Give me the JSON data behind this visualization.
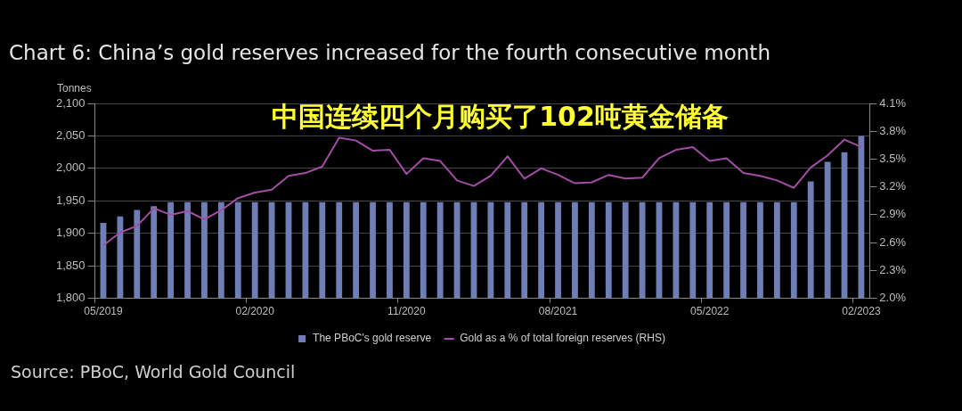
{
  "chart_data": {
    "type": "bar",
    "title": "Chart 6: China’s gold reserves increased for the fourth consecutive month",
    "subtitle": "中国连续四个月购买了102吨黄金储备",
    "ylabel": "Tonnes",
    "categories": [
      "05/2019",
      null,
      null,
      null,
      null,
      null,
      null,
      null,
      null,
      "02/2020",
      null,
      null,
      null,
      null,
      null,
      null,
      null,
      null,
      "11/2020",
      null,
      null,
      null,
      null,
      null,
      null,
      null,
      null,
      "08/2021",
      null,
      null,
      null,
      null,
      null,
      null,
      null,
      null,
      "05/2022",
      null,
      null,
      null,
      null,
      null,
      null,
      null,
      null,
      "02/2023"
    ],
    "series": [
      {
        "name": "The PBoC's gold reserve",
        "color": "#6f7fb5",
        "values": [
          1916,
          1926,
          1936,
          1942,
          1948,
          1948,
          1948,
          1948,
          1948,
          1948,
          1948,
          1948,
          1948,
          1948,
          1948,
          1948,
          1948,
          1948,
          1948,
          1948,
          1948,
          1948,
          1948,
          1948,
          1948,
          1948,
          1948,
          1948,
          1948,
          1948,
          1948,
          1948,
          1948,
          1948,
          1948,
          1948,
          1948,
          1948,
          1948,
          1948,
          1948,
          1948,
          1980,
          2010,
          2025,
          2050
        ]
      },
      {
        "name": "Gold as a % of total foreign reserves (RHS)",
        "type": "line",
        "axis": "y2",
        "color": "#a24ea6",
        "values": [
          2.57,
          2.71,
          2.78,
          2.97,
          2.9,
          2.94,
          2.85,
          2.95,
          3.08,
          3.14,
          3.17,
          3.32,
          3.35,
          3.42,
          3.73,
          3.7,
          3.59,
          3.6,
          3.34,
          3.51,
          3.48,
          3.27,
          3.21,
          3.32,
          3.53,
          3.29,
          3.4,
          3.33,
          3.24,
          3.25,
          3.33,
          3.29,
          3.3,
          3.51,
          3.6,
          3.63,
          3.48,
          3.51,
          3.35,
          3.32,
          3.27,
          3.19,
          3.41,
          3.54,
          3.71,
          3.63
        ]
      }
    ],
    "ylim": [
      1800,
      2100
    ],
    "yticks": [
      {
        "value": 1800,
        "label": "1,800"
      },
      {
        "value": 1850,
        "label": "1,850"
      },
      {
        "value": 1900,
        "label": "1,900"
      },
      {
        "value": 1950,
        "label": "1,950"
      },
      {
        "value": 2000,
        "label": "2,000"
      },
      {
        "value": 2050,
        "label": "2,050"
      },
      {
        "value": 2100,
        "label": "2,100"
      }
    ],
    "y2lim": [
      2.0,
      4.1
    ],
    "y2ticks": [
      {
        "value": 2.0,
        "label": "2.0%"
      },
      {
        "value": 2.3,
        "label": "2.3%"
      },
      {
        "value": 2.6,
        "label": "2.6%"
      },
      {
        "value": 2.9,
        "label": "2.9%"
      },
      {
        "value": 3.2,
        "label": "3.2%"
      },
      {
        "value": 3.5,
        "label": "3.5%"
      },
      {
        "value": 3.8,
        "label": "3.8%"
      },
      {
        "value": 4.1,
        "label": "4.1%"
      }
    ],
    "grid": "y",
    "legend": "bottom",
    "marker": "none",
    "line_style": "solid",
    "annotations": [
      "Source: PBoC, World Gold Council"
    ]
  }
}
